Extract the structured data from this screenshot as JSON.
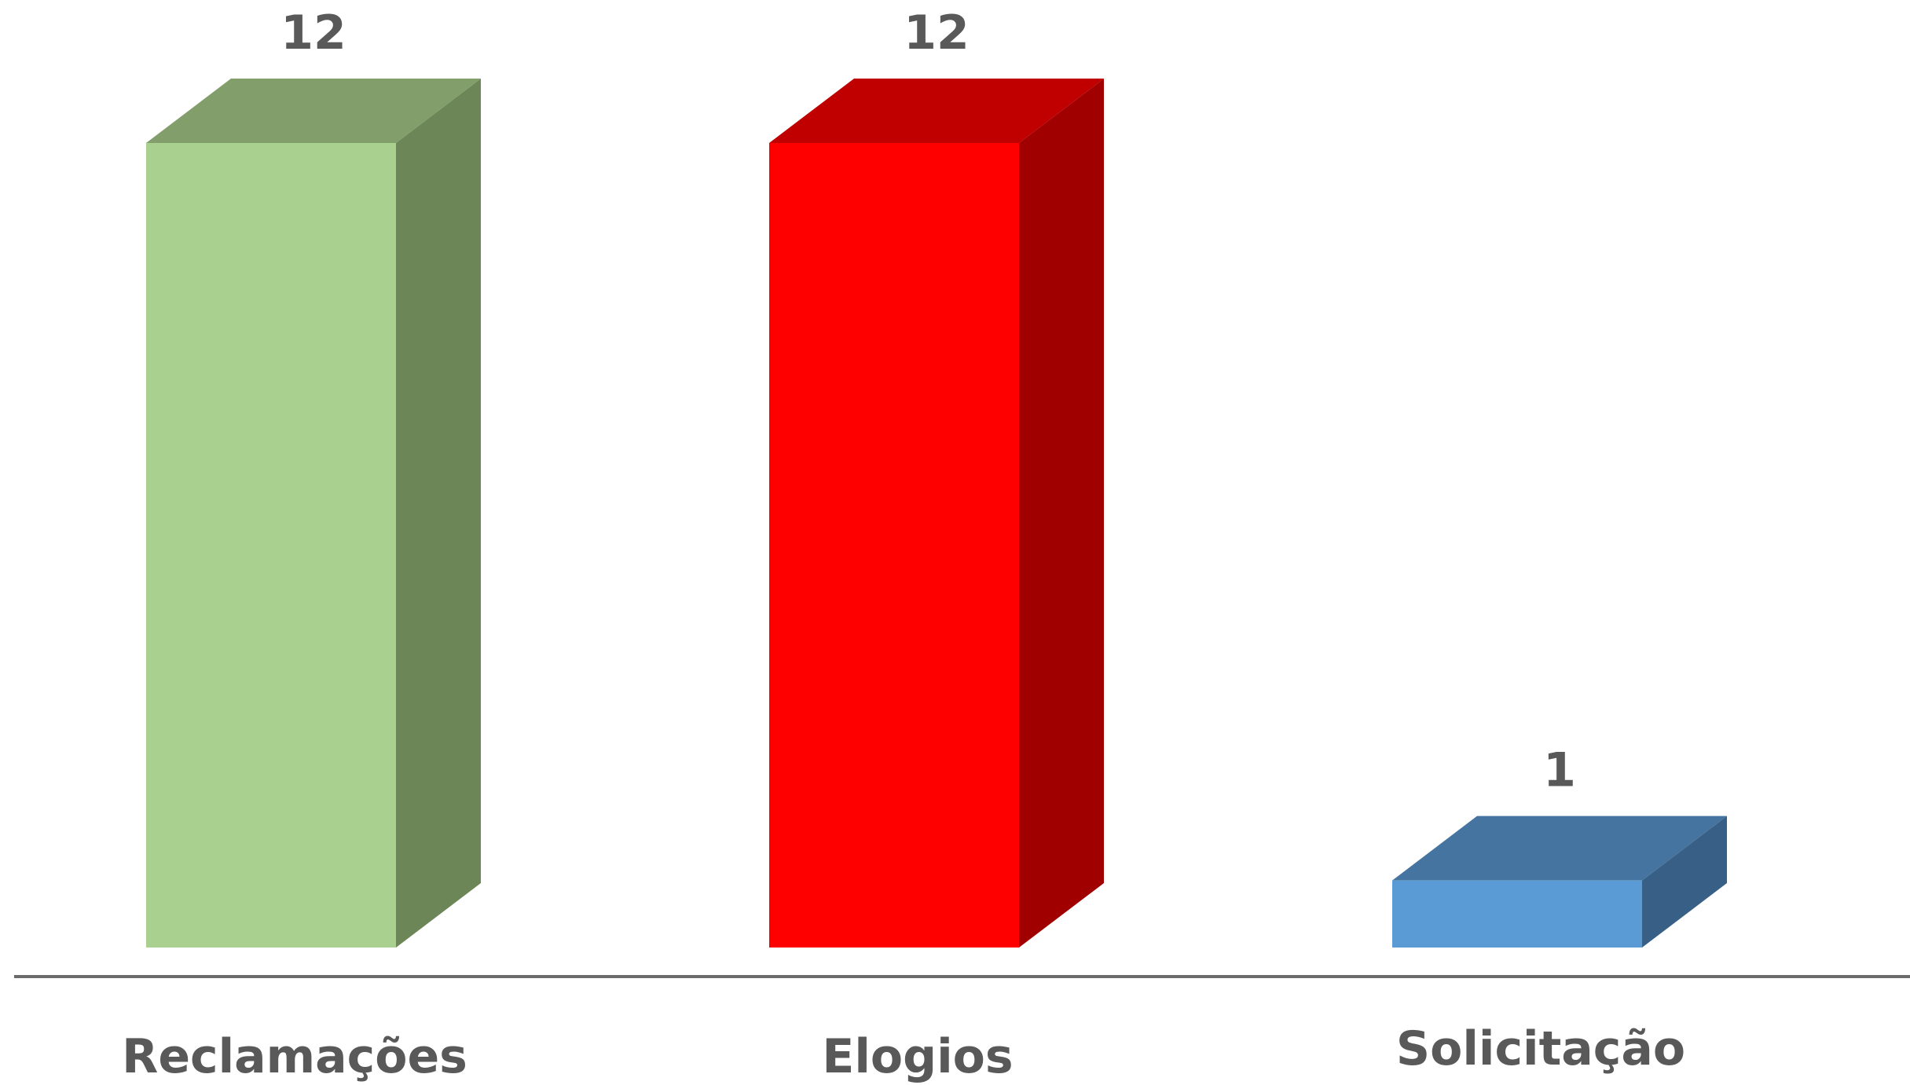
{
  "chart_data": {
    "type": "bar",
    "style": "3d-column",
    "categories": [
      "Reclamações",
      "Elogios",
      "Solicitação"
    ],
    "values": [
      12,
      12,
      1
    ],
    "title": "",
    "xlabel": "",
    "ylabel": "",
    "ylim": [
      0,
      12
    ],
    "grid": false,
    "legend": "none",
    "data_labels": true,
    "colors": [
      {
        "front": "#A9D08E",
        "top": "#819E6B",
        "side": "#6C8657"
      },
      {
        "front": "#FF0000",
        "top": "#C00000",
        "side": "#A00000"
      },
      {
        "front": "#5B9BD5",
        "top": "#44749F",
        "side": "#385F85"
      }
    ],
    "axis_color": "#6B6B6B",
    "label_color": "#595959"
  }
}
